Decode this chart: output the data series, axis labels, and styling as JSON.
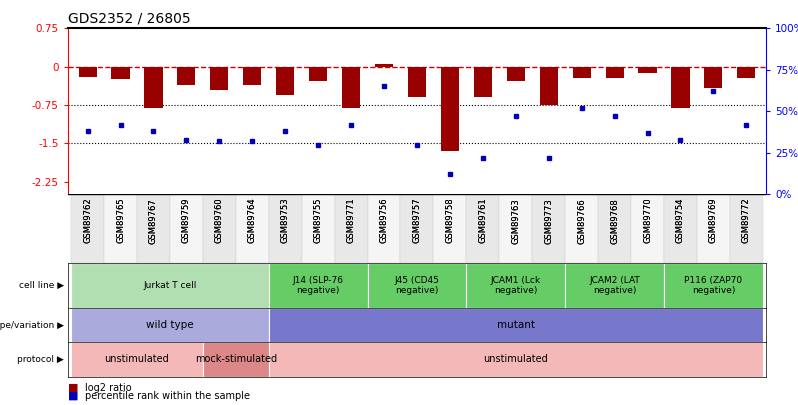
{
  "title": "GDS2352 / 26805",
  "samples": [
    "GSM89762",
    "GSM89765",
    "GSM89767",
    "GSM89759",
    "GSM89760",
    "GSM89764",
    "GSM89753",
    "GSM89755",
    "GSM89771",
    "GSM89756",
    "GSM89757",
    "GSM89758",
    "GSM89761",
    "GSM89763",
    "GSM89773",
    "GSM89766",
    "GSM89768",
    "GSM89770",
    "GSM89754",
    "GSM89769",
    "GSM89772"
  ],
  "log2_ratio": [
    -0.2,
    -0.25,
    -0.8,
    -0.35,
    -0.45,
    -0.35,
    -0.55,
    -0.28,
    -0.8,
    0.05,
    -0.6,
    -1.65,
    -0.6,
    -0.28,
    -0.75,
    -0.22,
    -0.22,
    -0.12,
    -0.8,
    -0.42,
    -0.22
  ],
  "percentile": [
    38,
    42,
    38,
    33,
    32,
    32,
    38,
    30,
    42,
    65,
    30,
    12,
    22,
    47,
    22,
    52,
    47,
    37,
    33,
    62,
    42
  ],
  "ymin": -2.5,
  "ymax": 0.75,
  "yticks_left": [
    0.75,
    0,
    -0.75,
    -1.5,
    -2.25
  ],
  "yticks_right_pct": [
    100,
    75,
    50,
    25,
    0
  ],
  "hlines_dotted": [
    -0.75,
    -1.5
  ],
  "bar_color": "#990000",
  "dot_color": "#0000BB",
  "dashed_line_color": "#CC0000",
  "cell_line_groups": [
    {
      "label": "Jurkat T cell",
      "start": 0,
      "end": 6,
      "color": "#b2dfb2"
    },
    {
      "label": "J14 (SLP-76\nnegative)",
      "start": 6,
      "end": 9,
      "color": "#66cc66"
    },
    {
      "label": "J45 (CD45\nnegative)",
      "start": 9,
      "end": 12,
      "color": "#66cc66"
    },
    {
      "label": "JCAM1 (Lck\nnegative)",
      "start": 12,
      "end": 15,
      "color": "#66cc66"
    },
    {
      "label": "JCAM2 (LAT\nnegative)",
      "start": 15,
      "end": 18,
      "color": "#66cc66"
    },
    {
      "label": "P116 (ZAP70\nnegative)",
      "start": 18,
      "end": 21,
      "color": "#66cc66"
    }
  ],
  "genotype_groups": [
    {
      "label": "wild type",
      "start": 0,
      "end": 6,
      "color": "#aaaadd"
    },
    {
      "label": "mutant",
      "start": 6,
      "end": 21,
      "color": "#7777cc"
    }
  ],
  "protocol_groups": [
    {
      "label": "unstimulated",
      "start": 0,
      "end": 4,
      "color": "#f4b8b8"
    },
    {
      "label": "mock-stimulated",
      "start": 4,
      "end": 6,
      "color": "#dd8888"
    },
    {
      "label": "unstimulated",
      "start": 6,
      "end": 21,
      "color": "#f4b8b8"
    }
  ],
  "row_labels": [
    "cell line",
    "genotype/variation",
    "protocol"
  ],
  "legend_items": [
    {
      "color": "#990000",
      "label": "log2 ratio"
    },
    {
      "color": "#0000BB",
      "label": "percentile rank within the sample"
    }
  ]
}
